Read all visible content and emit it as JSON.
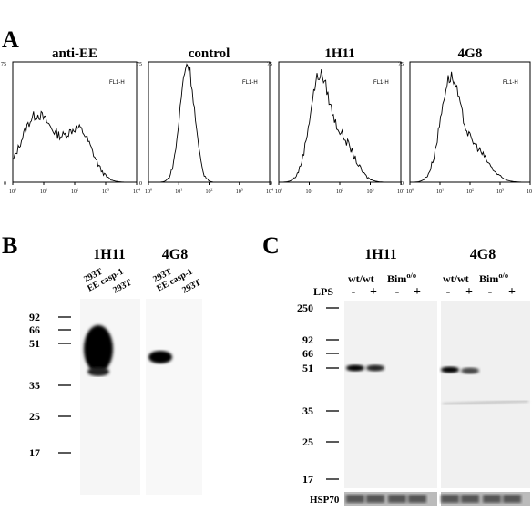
{
  "panel_a": {
    "label": "A",
    "plots": [
      "anti-EE",
      "control",
      "1H11",
      "4G8"
    ],
    "y_max": "75",
    "y_min": "0",
    "x_label": "FL1-H",
    "x_ticks": [
      {
        "base": "10",
        "exp": "0"
      },
      {
        "base": "10",
        "exp": "1"
      },
      {
        "base": "10",
        "exp": "2"
      },
      {
        "base": "10",
        "exp": "3"
      },
      {
        "base": "10",
        "exp": "4"
      }
    ]
  },
  "panel_b": {
    "label": "B",
    "antibodies": [
      "1H11",
      "4G8"
    ],
    "lanes": [
      {
        "line1": "293T",
        "line2": "EE casp-1"
      },
      {
        "line1": "293T"
      }
    ],
    "markers": [
      92,
      66,
      51,
      35,
      25,
      17
    ]
  },
  "panel_c": {
    "label": "C",
    "antibodies": [
      "1H11",
      "4G8"
    ],
    "genotype_wt": "wt/wt",
    "genotype_ko": {
      "base": "Bim",
      "sup": "o/o"
    },
    "treatment": "LPS",
    "signs": [
      "-",
      "+"
    ],
    "markers": [
      250,
      92,
      66,
      51,
      35,
      25,
      17
    ],
    "loading": "HSP70"
  }
}
